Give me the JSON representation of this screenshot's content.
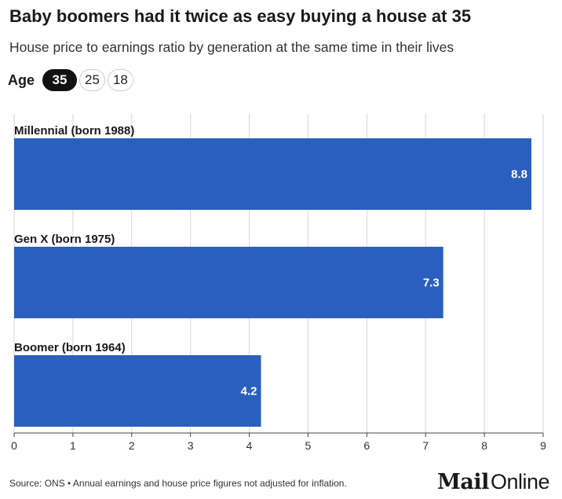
{
  "title": "Baby boomers had it twice as easy buying a house at 35",
  "subtitle": "House price to earnings ratio by generation at the same time in their lives",
  "age_selector": {
    "label": "Age",
    "options": [
      "35",
      "25",
      "18"
    ],
    "selected": "35"
  },
  "chart_data": {
    "type": "bar",
    "orientation": "horizontal",
    "categories": [
      "Millennial (born 1988)",
      "Gen X (born 1975)",
      "Boomer (born 1964)"
    ],
    "values": [
      8.8,
      7.3,
      4.2
    ],
    "value_labels": [
      "8.8",
      "7.3",
      "4.2"
    ],
    "xlim": [
      0,
      9
    ],
    "xticks": [
      "0",
      "1",
      "2",
      "3",
      "4",
      "5",
      "6",
      "7",
      "8",
      "9"
    ],
    "grid": true,
    "bar_color": "#2b5fbf",
    "grid_color": "#d6d6d6"
  },
  "footer": {
    "source": "Source: ONS • Annual earnings and house price figures not adjusted for inflation."
  },
  "logo": {
    "mail": "Mail",
    "online": "Online"
  }
}
